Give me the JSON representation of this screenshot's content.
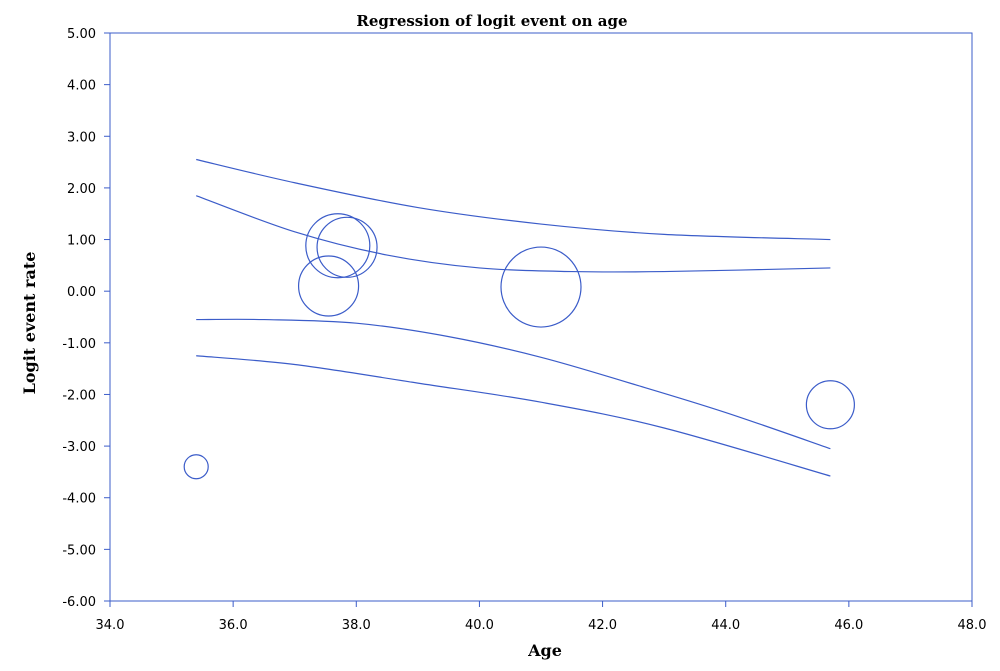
{
  "chart_data": {
    "type": "scatter",
    "title": "Regression of logit event on age",
    "xlabel": "Age",
    "ylabel": "Logit event rate",
    "xlim": [
      34.0,
      48.0
    ],
    "ylim": [
      -6.0,
      5.0
    ],
    "x_ticks": [
      "34.0",
      "36.0",
      "38.0",
      "40.0",
      "42.0",
      "44.0",
      "46.0",
      "48.0"
    ],
    "y_ticks": [
      "5.00",
      "4.00",
      "3.00",
      "2.00",
      "1.00",
      "0.00",
      "-1.00",
      "-2.00",
      "-3.00",
      "-4.00",
      "-5.00",
      "-6.00"
    ],
    "grid": false,
    "accent_color": "#3b5cc9",
    "points": [
      {
        "x": 35.4,
        "y": -3.4,
        "weight": 0.6
      },
      {
        "x": 37.55,
        "y": 0.1,
        "weight": 1.5
      },
      {
        "x": 37.7,
        "y": 0.88,
        "weight": 1.6
      },
      {
        "x": 37.85,
        "y": 0.85,
        "weight": 1.5
      },
      {
        "x": 41.0,
        "y": 0.08,
        "weight": 2.0
      },
      {
        "x": 45.7,
        "y": -2.2,
        "weight": 1.2
      }
    ],
    "bands": [
      {
        "x": [
          35.4,
          37.0,
          39.0,
          41.0,
          43.0,
          45.7
        ],
        "y": [
          2.55,
          2.1,
          1.62,
          1.3,
          1.1,
          1.0
        ]
      },
      {
        "x": [
          35.4,
          37.0,
          38.5,
          40.0,
          41.5,
          43.0,
          45.7
        ],
        "y": [
          1.85,
          1.15,
          0.7,
          0.45,
          0.38,
          0.38,
          0.45
        ]
      },
      {
        "x": [
          35.4,
          36.5,
          38.0,
          39.5,
          41.0,
          42.5,
          44.0,
          45.7
        ],
        "y": [
          -0.55,
          -0.55,
          -0.62,
          -0.88,
          -1.28,
          -1.8,
          -2.35,
          -3.05
        ]
      },
      {
        "x": [
          35.4,
          37.0,
          39.0,
          41.0,
          43.0,
          45.7
        ],
        "y": [
          -1.25,
          -1.42,
          -1.78,
          -2.15,
          -2.65,
          -3.58
        ]
      }
    ]
  }
}
